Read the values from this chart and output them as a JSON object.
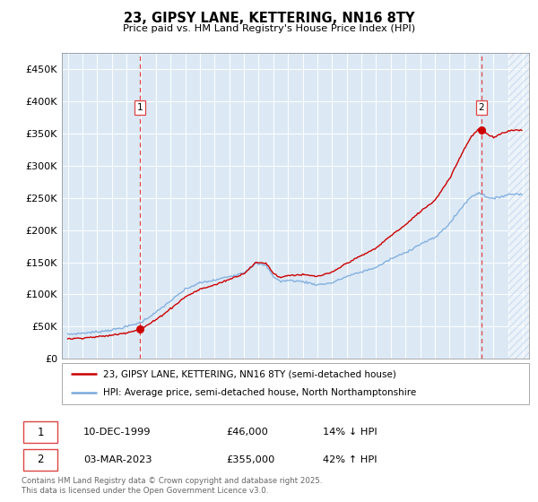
{
  "title": "23, GIPSY LANE, KETTERING, NN16 8TY",
  "subtitle": "Price paid vs. HM Land Registry's House Price Index (HPI)",
  "background_color": "#ffffff",
  "plot_bg_color": "#dce9f5",
  "grid_color": "#ffffff",
  "red_line_color": "#cc0000",
  "blue_line_color": "#7aaadd",
  "dashed_red_color": "#dd4444",
  "legend_line1": "23, GIPSY LANE, KETTERING, NN16 8TY (semi-detached house)",
  "legend_line2": "HPI: Average price, semi-detached house, North Northamptonshire",
  "footer": "Contains HM Land Registry data © Crown copyright and database right 2025.\nThis data is licensed under the Open Government Licence v3.0.",
  "ylim": [
    0,
    475000
  ],
  "yticks": [
    0,
    50000,
    100000,
    150000,
    200000,
    250000,
    300000,
    350000,
    400000,
    450000
  ],
  "ytick_labels": [
    "£0",
    "£50K",
    "£100K",
    "£150K",
    "£200K",
    "£250K",
    "£300K",
    "£350K",
    "£400K",
    "£450K"
  ],
  "sale1_x": 1999.92,
  "sale1_y": 46000,
  "sale2_x": 2023.17,
  "sale2_y": 355000,
  "hatch_start": 2025.0,
  "xlim_left": 1994.6,
  "xlim_right": 2026.4
}
